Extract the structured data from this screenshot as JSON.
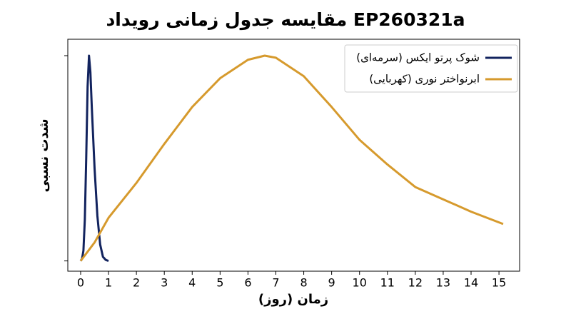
{
  "chart_data": {
    "type": "line",
    "title": "مقایسه جدول زمانی رویداد EP260321a",
    "xlabel": "زمان (روز)",
    "ylabel": "شدت نسبی",
    "series": [
      {
        "name": "شوک پرتو ایکس (سرمه‌ای)",
        "color": "#12235e",
        "x": [
          0,
          0.05,
          0.1,
          0.15,
          0.2,
          0.25,
          0.3,
          0.35,
          0.4,
          0.5,
          0.6,
          0.7,
          0.8,
          0.9,
          1.0
        ],
        "values": [
          0,
          0.01,
          0.05,
          0.2,
          0.5,
          0.85,
          1.0,
          0.92,
          0.75,
          0.45,
          0.22,
          0.08,
          0.02,
          0.005,
          0
        ]
      },
      {
        "name": "ابرنواختر نوری (کهربایی)",
        "color": "#d69a2d",
        "x": [
          0,
          0.5,
          1,
          2,
          3,
          4,
          5,
          6,
          6.6,
          7,
          8,
          9,
          10,
          11,
          12,
          13,
          14,
          15.15
        ],
        "values": [
          0,
          0.09,
          0.21,
          0.38,
          0.57,
          0.75,
          0.89,
          0.98,
          1.0,
          0.99,
          0.9,
          0.75,
          0.59,
          0.47,
          0.36,
          0.3,
          0.24,
          0.18
        ]
      }
    ],
    "xlim": [
      -0.46,
      15.74
    ],
    "ylim": [
      -0.05,
      1.08
    ],
    "xticks": [
      0,
      1,
      2,
      3,
      4,
      5,
      6,
      7,
      8,
      9,
      10,
      11,
      12,
      13,
      14,
      15
    ],
    "yticks": [
      0,
      1
    ],
    "legend": "upper right"
  }
}
